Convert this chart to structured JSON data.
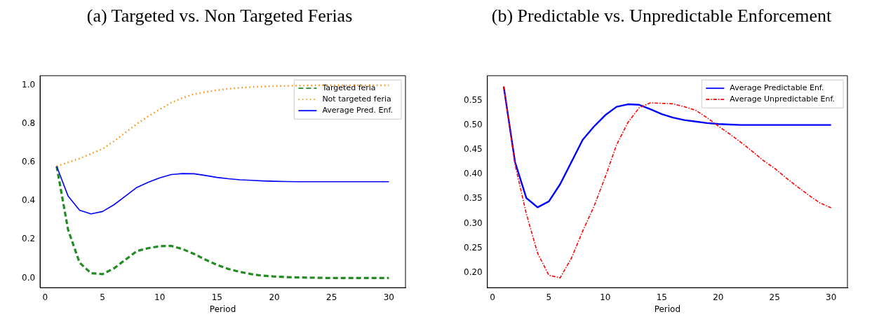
{
  "chart_data": [
    {
      "type": "line",
      "title": "(a) Targeted vs. Non Targeted Ferias",
      "xlabel": "Period",
      "x": [
        1,
        2,
        3,
        4,
        5,
        6,
        7,
        8,
        9,
        10,
        11,
        12,
        13,
        14,
        15,
        16,
        17,
        18,
        19,
        20,
        21,
        22,
        23,
        24,
        25,
        26,
        27,
        28,
        29,
        30
      ],
      "xlim": [
        -0.45,
        31.45
      ],
      "xticks": [
        0,
        5,
        10,
        15,
        20,
        25,
        30
      ],
      "ylim": [
        -0.05,
        1.05
      ],
      "yticks": [
        {
          "value": 0,
          "label": "0.0"
        },
        0.2,
        0.4,
        0.6,
        0.8,
        {
          "value": 1,
          "label": "1.0"
        }
      ],
      "grid": false,
      "legend": "top right",
      "marker": "none",
      "series": [
        {
          "name": "Targeted feria",
          "color": "#228b22",
          "line_style": "dashed",
          "values": [
            0.58,
            0.25,
            0.08,
            0.025,
            0.02,
            0.05,
            0.095,
            0.14,
            0.155,
            0.165,
            0.167,
            0.15,
            0.125,
            0.095,
            0.068,
            0.047,
            0.032,
            0.02,
            0.012,
            0.008,
            0.005,
            0.003,
            0.002,
            0.001,
            0,
            0,
            0,
            0,
            0,
            0
          ]
        },
        {
          "name": "Not targeted feria",
          "color": "#ff8c00",
          "line_style": "dotted",
          "values": [
            0.58,
            0.6,
            0.62,
            0.645,
            0.67,
            0.71,
            0.755,
            0.8,
            0.84,
            0.875,
            0.91,
            0.935,
            0.955,
            0.965,
            0.975,
            0.982,
            0.987,
            0.991,
            0.994,
            0.996,
            0.997,
            0.998,
            0.999,
            1,
            1,
            1,
            1,
            1,
            1,
            1
          ]
        },
        {
          "name": "Average Pred. Enf.",
          "color": "#0000ff",
          "line_style": "solid",
          "values": [
            0.58,
            0.425,
            0.352,
            0.333,
            0.345,
            0.38,
            0.425,
            0.47,
            0.497,
            0.52,
            0.537,
            0.542,
            0.541,
            0.532,
            0.522,
            0.515,
            0.51,
            0.507,
            0.504,
            0.502,
            0.501,
            0.5,
            0.5,
            0.5,
            0.5,
            0.5,
            0.5,
            0.5,
            0.5,
            0.5
          ]
        }
      ]
    },
    {
      "type": "line",
      "title": "(b) Predictable vs. Unpredictable Enforcement",
      "xlabel": "Period",
      "x": [
        1,
        2,
        3,
        4,
        5,
        6,
        7,
        8,
        9,
        10,
        11,
        12,
        13,
        14,
        15,
        16,
        17,
        18,
        19,
        20,
        21,
        22,
        23,
        24,
        25,
        26,
        27,
        28,
        29,
        30
      ],
      "xlim": [
        -0.45,
        31.45
      ],
      "xticks": [
        0,
        5,
        10,
        15,
        20,
        25,
        30
      ],
      "ylim": [
        0.17,
        0.6
      ],
      "yticks": [
        {
          "value": 0.2,
          "label": "0.20"
        },
        0.25,
        {
          "value": 0.3,
          "label": "0.30"
        },
        0.35,
        {
          "value": 0.4,
          "label": "0.40"
        },
        0.45,
        {
          "value": 0.5,
          "label": "0.50"
        },
        0.55
      ],
      "grid": false,
      "legend": "top right",
      "marker": "none",
      "series": [
        {
          "name": "Average Predictable Enf.",
          "color": "#0000ff",
          "line_style": "solid",
          "values": [
            0.578,
            0.425,
            0.352,
            0.333,
            0.345,
            0.38,
            0.425,
            0.47,
            0.497,
            0.52,
            0.537,
            0.542,
            0.541,
            0.532,
            0.522,
            0.515,
            0.51,
            0.507,
            0.504,
            0.502,
            0.501,
            0.5,
            0.5,
            0.5,
            0.5,
            0.5,
            0.5,
            0.5,
            0.5,
            0.5
          ]
        },
        {
          "name": "Average Unpredictable Enf.",
          "color": "#ff0000",
          "line_style": "dashdot",
          "values": [
            0.578,
            0.42,
            0.32,
            0.24,
            0.195,
            0.19,
            0.23,
            0.285,
            0.335,
            0.395,
            0.46,
            0.505,
            0.535,
            0.545,
            0.544,
            0.543,
            0.537,
            0.53,
            0.515,
            0.498,
            0.482,
            0.465,
            0.447,
            0.428,
            0.412,
            0.393,
            0.375,
            0.358,
            0.342,
            0.332
          ]
        }
      ]
    }
  ]
}
